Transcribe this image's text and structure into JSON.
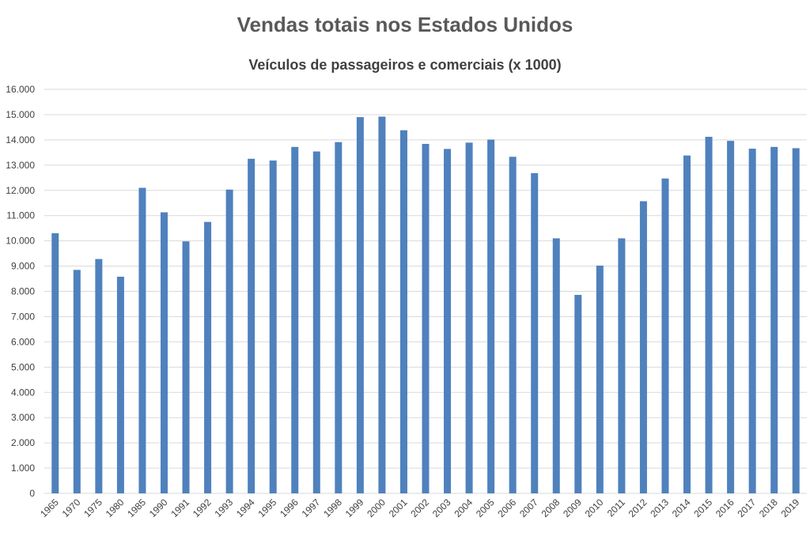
{
  "chart_data": {
    "type": "bar",
    "title": "Vendas totais nos Estados Unidos",
    "subtitle": "Veículos de passageiros e comerciais (x 1000)",
    "xlabel": "",
    "ylabel": "",
    "ylim": [
      0,
      16000
    ],
    "grid": true,
    "y_ticks": [
      "0",
      "1.000",
      "2.000",
      "3.000",
      "4.000",
      "5.000",
      "6.000",
      "7.000",
      "8.000",
      "9.000",
      "10.000",
      "11.000",
      "12.000",
      "13.000",
      "14.000",
      "15.000",
      "16.000"
    ],
    "categories": [
      "1965",
      "1970",
      "1975",
      "1980",
      "1985",
      "1990",
      "1991",
      "1992",
      "1993",
      "1994",
      "1995",
      "1996",
      "1997",
      "1998",
      "1999",
      "2000",
      "2001",
      "2002",
      "2003",
      "2004",
      "2005",
      "2006",
      "2007",
      "2008",
      "2009",
      "2010",
      "2011",
      "2012",
      "2013",
      "2014",
      "2015",
      "2016",
      "2017",
      "2018",
      "2019"
    ],
    "values": [
      10300,
      8850,
      9280,
      8580,
      12100,
      11130,
      9980,
      10750,
      12030,
      13250,
      13180,
      13720,
      13540,
      13910,
      14900,
      14920,
      14380,
      13840,
      13640,
      13890,
      14010,
      13330,
      12680,
      10100,
      7860,
      9020,
      10100,
      11570,
      12470,
      13380,
      14120,
      13960,
      13650,
      13720,
      13670
    ],
    "bar_color": "#4f81bd",
    "grid_color": "#d9d9d9"
  }
}
